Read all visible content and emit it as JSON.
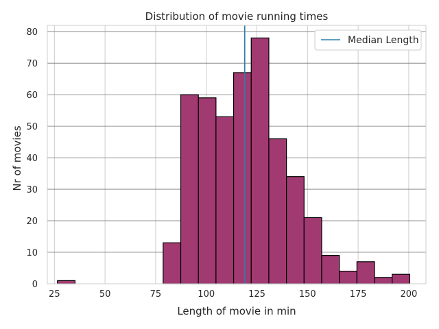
{
  "chart_data": {
    "type": "bar",
    "subtype": "histogram",
    "title": "Distribution of movie running times",
    "xlabel": "Length of movie in min",
    "ylabel": "Nr of movies",
    "xlim": [
      21.5,
      208.5
    ],
    "ylim": [
      0,
      82
    ],
    "xticks": [
      25,
      50,
      75,
      100,
      125,
      150,
      175,
      200
    ],
    "yticks": [
      0,
      10,
      20,
      30,
      40,
      50,
      60,
      70,
      80
    ],
    "bins": [
      {
        "start": 26.5,
        "end": 35.2,
        "count": 1
      },
      {
        "start": 35.2,
        "end": 43.9,
        "count": 0
      },
      {
        "start": 43.9,
        "end": 52.6,
        "count": 0
      },
      {
        "start": 52.6,
        "end": 61.3,
        "count": 0
      },
      {
        "start": 61.3,
        "end": 70.0,
        "count": 0
      },
      {
        "start": 70.0,
        "end": 78.7,
        "count": 0
      },
      {
        "start": 78.7,
        "end": 87.4,
        "count": 13
      },
      {
        "start": 87.4,
        "end": 96.1,
        "count": 60
      },
      {
        "start": 96.1,
        "end": 104.8,
        "count": 59
      },
      {
        "start": 104.8,
        "end": 113.5,
        "count": 53
      },
      {
        "start": 113.5,
        "end": 122.2,
        "count": 67
      },
      {
        "start": 122.2,
        "end": 130.9,
        "count": 78
      },
      {
        "start": 130.9,
        "end": 139.6,
        "count": 46
      },
      {
        "start": 139.6,
        "end": 148.3,
        "count": 34
      },
      {
        "start": 148.3,
        "end": 157.0,
        "count": 21
      },
      {
        "start": 157.0,
        "end": 165.7,
        "count": 9
      },
      {
        "start": 165.7,
        "end": 174.4,
        "count": 4
      },
      {
        "start": 174.4,
        "end": 183.1,
        "count": 7
      },
      {
        "start": 183.1,
        "end": 191.8,
        "count": 2
      },
      {
        "start": 191.8,
        "end": 200.5,
        "count": 3
      }
    ],
    "median_line": {
      "x": 119,
      "label": "Median Length"
    },
    "legend": {
      "placement": "top-right",
      "entries": [
        "Median Length"
      ]
    },
    "grid": true,
    "colors": {
      "bar_fill": "#a23a72",
      "bar_edge": "#000000",
      "median_line": "#2a7ea8",
      "grid_x": "#cccccc",
      "grid_y": "#777777",
      "frame": "#cccccc"
    }
  }
}
